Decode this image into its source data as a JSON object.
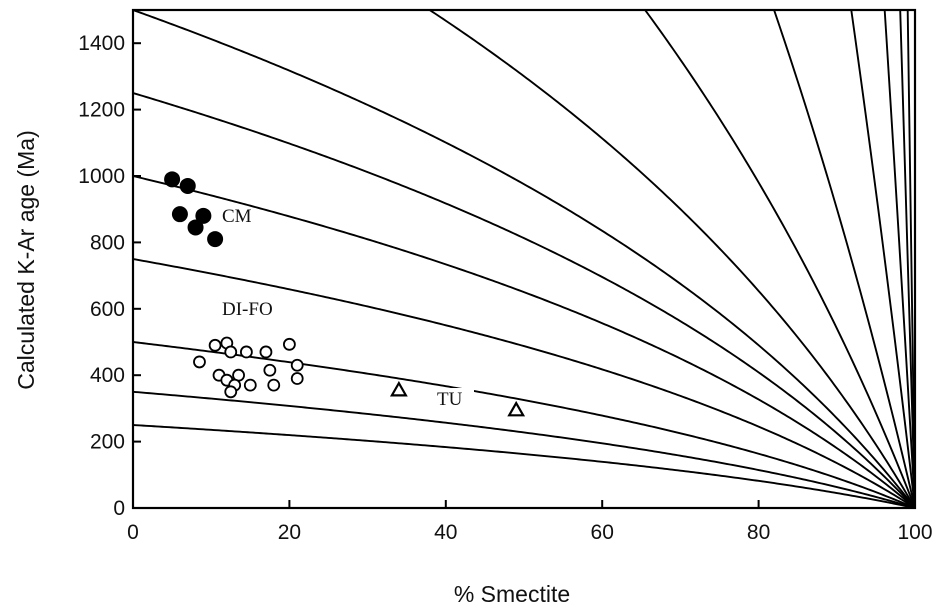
{
  "chart_data": {
    "type": "scatter",
    "xlabel": "% Smectite",
    "ylabel": "Calculated K-Ar age (Ma)",
    "xlim": [
      0,
      100
    ],
    "ylim": [
      0,
      1500
    ],
    "x_ticks": [
      0,
      20,
      40,
      60,
      80,
      100
    ],
    "y_ticks": [
      0,
      200,
      400,
      600,
      800,
      1000,
      1200,
      1400
    ],
    "grid": false,
    "curves": {
      "description": "reference lines: calculated age vs % smectite, converging to 0 at 100%",
      "start_ages": [
        250,
        350,
        500,
        750,
        1000,
        1250,
        1500,
        2000,
        3000,
        5000,
        10000,
        20000,
        40000,
        80000
      ]
    },
    "series": [
      {
        "name": "CM",
        "marker": "filled-circle",
        "points": [
          [
            5,
            990
          ],
          [
            7,
            970
          ],
          [
            6,
            885
          ],
          [
            9,
            880
          ],
          [
            8,
            845
          ],
          [
            10.5,
            810
          ]
        ]
      },
      {
        "name": "DI-FO",
        "marker": "open-circle",
        "points": [
          [
            10.5,
            490
          ],
          [
            12,
            497
          ],
          [
            20,
            493
          ],
          [
            12.5,
            470
          ],
          [
            14.5,
            470
          ],
          [
            17,
            470
          ],
          [
            8.5,
            440
          ],
          [
            21,
            430
          ],
          [
            17.5,
            415
          ],
          [
            11,
            400
          ],
          [
            13.5,
            400
          ],
          [
            21,
            390
          ],
          [
            12,
            385
          ],
          [
            13,
            370
          ],
          [
            15,
            370
          ],
          [
            18,
            370
          ],
          [
            12.5,
            350
          ]
        ]
      },
      {
        "name": "TU",
        "marker": "open-triangle",
        "points": [
          [
            34,
            355
          ],
          [
            49,
            295
          ]
        ]
      }
    ]
  }
}
